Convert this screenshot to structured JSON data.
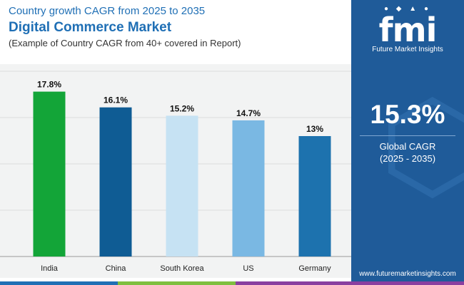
{
  "header": {
    "subtitle": "Country growth CAGR from 2025 to 2035",
    "title": "Digital Commerce Market",
    "note": "(Example of Country CAGR from 40+ covered in Report)"
  },
  "brand": {
    "logo_text": "fmi",
    "name": "Future Market Insights",
    "website": "www.futuremarketinsights.com"
  },
  "summary": {
    "value": "15.3%",
    "label_line1": "Global CAGR",
    "label_line2": "(2025 - 2035)"
  },
  "chart_data": {
    "type": "bar",
    "categories": [
      "India",
      "China",
      "South Korea",
      "US",
      "Germany"
    ],
    "values": [
      17.8,
      16.1,
      15.2,
      14.7,
      13
    ],
    "value_labels": [
      "17.8%",
      "16.1%",
      "15.2%",
      "14.7%",
      "13%"
    ],
    "colors": [
      "#13a538",
      "#0f5c94",
      "#c6e2f3",
      "#7ab8e3",
      "#1d72ae"
    ],
    "ylim": [
      0,
      20
    ],
    "grid": true,
    "legend": "none"
  },
  "colors": {
    "title_blue": "#1f6fb5",
    "panel_blue": "#1f5b99",
    "stripe": [
      "#1f6fb5",
      "#7fbf3f",
      "#8a3fa0"
    ]
  }
}
